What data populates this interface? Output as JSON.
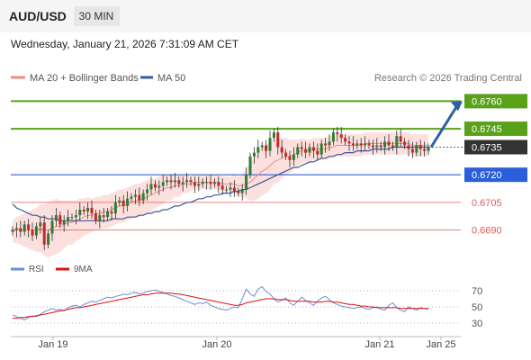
{
  "header": {
    "symbol": "AUD/USD",
    "timeframe": "30 MIN",
    "datetime": "Wednesday, January 21, 2026 7:31:09 AM CET",
    "copyright": "Research © 2026 Trading Central"
  },
  "colors": {
    "ma20": "#f28b82",
    "ma50": "#3a5a9a",
    "green": "#5aa11a",
    "blue": "#2b5fd9",
    "red": "#e05a5a",
    "candle_up": "#2e7d32",
    "candle_down": "#c62828",
    "band": "#f9d3d0",
    "rsi": "#6a8fd8",
    "rsi_ma": "#e01010",
    "arrow": "#2e5fa6"
  },
  "chart_data": [
    {
      "type": "candlestick",
      "legend": [
        {
          "label": "MA 20 + Bollinger Bands",
          "color": "#f28b82"
        },
        {
          "label": "MA 50",
          "color": "#3a5a9a"
        }
      ],
      "ylim": [
        0.6679,
        0.6769
      ],
      "x_ticks": [
        "Jan 19",
        "Jan 20",
        "Jan 21",
        "Jan 25"
      ],
      "levels": [
        {
          "value": 0.676,
          "label": "0.6760",
          "color": "#5aa11a",
          "style": "filled"
        },
        {
          "value": 0.6745,
          "label": "0.6745",
          "color": "#5aa11a",
          "style": "filled"
        },
        {
          "value": 0.6735,
          "label": "0.6735",
          "color": "#333333",
          "style": "current"
        },
        {
          "value": 0.672,
          "label": "0.6720",
          "color": "#2b5fd9",
          "style": "filled"
        },
        {
          "value": 0.6705,
          "label": "0.6705",
          "color": "#e05a5a",
          "style": "text"
        },
        {
          "value": 0.669,
          "label": "0.6690",
          "color": "#e05a5a",
          "style": "text"
        }
      ],
      "closes": [
        0.669,
        0.6691,
        0.6689,
        0.6693,
        0.669,
        0.6687,
        0.6692,
        0.6694,
        0.6682,
        0.6688,
        0.6695,
        0.6698,
        0.6693,
        0.6695,
        0.6697,
        0.6697,
        0.6698,
        0.6701,
        0.67,
        0.6702,
        0.6699,
        0.6695,
        0.6698,
        0.6697,
        0.67,
        0.6699,
        0.6705,
        0.6706,
        0.6703,
        0.6707,
        0.6708,
        0.6709,
        0.6706,
        0.671,
        0.6712,
        0.6715,
        0.6713,
        0.6714,
        0.6716,
        0.6717,
        0.6716,
        0.6717,
        0.6715,
        0.6716,
        0.6717,
        0.6716,
        0.6714,
        0.6715,
        0.6716,
        0.6716,
        0.6715,
        0.6716,
        0.6714,
        0.6712,
        0.6712,
        0.6713,
        0.6711,
        0.671,
        0.6712,
        0.672,
        0.673,
        0.6732,
        0.6735,
        0.6736,
        0.6733,
        0.674,
        0.6743,
        0.6735,
        0.6732,
        0.673,
        0.6728,
        0.6731,
        0.6735,
        0.6734,
        0.6732,
        0.6735,
        0.6733,
        0.6731,
        0.6737,
        0.6736,
        0.6738,
        0.6743,
        0.6742,
        0.674,
        0.6738,
        0.6737,
        0.6736,
        0.6737,
        0.6736,
        0.6737,
        0.6736,
        0.6735,
        0.6736,
        0.6735,
        0.6738,
        0.6736,
        0.6735,
        0.6741,
        0.6738,
        0.6736,
        0.6734,
        0.6732,
        0.6736,
        0.6734,
        0.6733,
        0.6735
      ],
      "ma20": [
        0.6689,
        0.669,
        0.669,
        0.669,
        0.669,
        0.669,
        0.669,
        0.6691,
        0.669,
        0.669,
        0.6691,
        0.6692,
        0.6692,
        0.6693,
        0.6694,
        0.6694,
        0.6695,
        0.6696,
        0.6697,
        0.6698,
        0.6698,
        0.6699,
        0.6699,
        0.67,
        0.67,
        0.6701,
        0.6702,
        0.6703,
        0.6703,
        0.6704,
        0.6705,
        0.6706,
        0.6706,
        0.6707,
        0.6708,
        0.6709,
        0.671,
        0.6711,
        0.6712,
        0.6713,
        0.6713,
        0.6714,
        0.6714,
        0.6715,
        0.6715,
        0.6715,
        0.6716,
        0.6716,
        0.6716,
        0.6716,
        0.6716,
        0.6716,
        0.6716,
        0.6715,
        0.6715,
        0.6715,
        0.6715,
        0.6714,
        0.6714,
        0.6715,
        0.6716,
        0.6718,
        0.672,
        0.6722,
        0.6723,
        0.6725,
        0.6727,
        0.6728,
        0.6729,
        0.673,
        0.673,
        0.6731,
        0.6732,
        0.6733,
        0.6733,
        0.6733,
        0.6734,
        0.6734,
        0.6734,
        0.6734,
        0.6735,
        0.6735,
        0.6736,
        0.6736,
        0.6736,
        0.6736,
        0.6736,
        0.6736,
        0.6736,
        0.6737,
        0.6737,
        0.6737,
        0.6737,
        0.6737,
        0.6737,
        0.6737,
        0.6737,
        0.6737,
        0.6737,
        0.6737,
        0.6737,
        0.6736,
        0.6736,
        0.6736,
        0.6736,
        0.6736
      ],
      "band_width": [
        0.0006,
        0.0007,
        0.0008,
        0.0009,
        0.001,
        0.0011,
        0.0012,
        0.0013,
        0.0014,
        0.0015,
        0.0015,
        0.0015,
        0.0014,
        0.0013,
        0.0012,
        0.0012,
        0.0011,
        0.0011,
        0.001,
        0.001,
        0.0009,
        0.0009,
        0.0009,
        0.0009,
        0.0009,
        0.0009,
        0.0009,
        0.0009,
        0.0009,
        0.0009,
        0.0009,
        0.0009,
        0.0009,
        0.0009,
        0.0009,
        0.0009,
        0.0008,
        0.0008,
        0.0008,
        0.0007,
        0.0007,
        0.0006,
        0.0006,
        0.0005,
        0.0005,
        0.0004,
        0.0004,
        0.0004,
        0.0004,
        0.0004,
        0.0004,
        0.0004,
        0.0004,
        0.0004,
        0.0004,
        0.0004,
        0.0005,
        0.0005,
        0.0006,
        0.0008,
        0.001,
        0.0012,
        0.0013,
        0.0013,
        0.0013,
        0.0013,
        0.0012,
        0.0012,
        0.0011,
        0.001,
        0.0009,
        0.0008,
        0.0007,
        0.0007,
        0.0006,
        0.0006,
        0.0006,
        0.0006,
        0.0006,
        0.0006,
        0.0006,
        0.0006,
        0.0006,
        0.0006,
        0.0006,
        0.0006,
        0.0006,
        0.0006,
        0.0006,
        0.0006,
        0.0006,
        0.0006,
        0.0006,
        0.0006,
        0.0006,
        0.0006,
        0.0006,
        0.0006,
        0.0006,
        0.0006,
        0.0006,
        0.0006,
        0.0006,
        0.0006,
        0.0006,
        0.0006
      ],
      "ma50": [
        0.6704,
        0.6702,
        0.6701,
        0.67,
        0.6699,
        0.6698,
        0.6698,
        0.6697,
        0.6697,
        0.6696,
        0.6696,
        0.6696,
        0.6695,
        0.6695,
        0.6695,
        0.6695,
        0.6695,
        0.6695,
        0.6695,
        0.6695,
        0.6695,
        0.6695,
        0.6695,
        0.6695,
        0.6695,
        0.6696,
        0.6696,
        0.6696,
        0.6696,
        0.6697,
        0.6697,
        0.6697,
        0.6698,
        0.6698,
        0.6699,
        0.6699,
        0.67,
        0.67,
        0.6701,
        0.6701,
        0.6702,
        0.6703,
        0.6703,
        0.6704,
        0.6705,
        0.6705,
        0.6706,
        0.6707,
        0.6707,
        0.6708,
        0.6708,
        0.6709,
        0.6709,
        0.671,
        0.671,
        0.671,
        0.6711,
        0.6711,
        0.6712,
        0.6712,
        0.6713,
        0.6714,
        0.6715,
        0.6716,
        0.6717,
        0.6718,
        0.6719,
        0.672,
        0.6721,
        0.6722,
        0.6723,
        0.6724,
        0.6724,
        0.6725,
        0.6726,
        0.6727,
        0.6727,
        0.6728,
        0.6729,
        0.6729,
        0.673,
        0.673,
        0.6731,
        0.6731,
        0.6732,
        0.6732,
        0.6732,
        0.6733,
        0.6733,
        0.6733,
        0.6733,
        0.6734,
        0.6734,
        0.6734,
        0.6734,
        0.6734,
        0.6735,
        0.6735,
        0.6735,
        0.6735,
        0.6735,
        0.6735,
        0.6735,
        0.6735,
        0.6735,
        0.6735
      ],
      "forecast_arrow": {
        "from": 0.6735,
        "to": 0.676
      }
    },
    {
      "type": "line",
      "legend": [
        {
          "label": "RSI",
          "color": "#6a8fd8"
        },
        {
          "label": "9MA",
          "color": "#e01010"
        }
      ],
      "ylim": [
        20,
        80
      ],
      "y_ticks": [
        "70",
        "50",
        "30"
      ],
      "series": [
        {
          "name": "RSI",
          "values": [
            40,
            38,
            36,
            34,
            37,
            39,
            38,
            41,
            44,
            46,
            48,
            46,
            47,
            45,
            49,
            51,
            52,
            50,
            53,
            55,
            57,
            56,
            58,
            60,
            62,
            61,
            63,
            64,
            66,
            65,
            67,
            68,
            66,
            67,
            69,
            70,
            71,
            69,
            68,
            66,
            64,
            63,
            61,
            59,
            57,
            55,
            53,
            55,
            54,
            56,
            52,
            50,
            48,
            47,
            46,
            48,
            50,
            49,
            60,
            72,
            66,
            63,
            72,
            75,
            69,
            66,
            60,
            56,
            58,
            61,
            55,
            52,
            57,
            62,
            58,
            55,
            52,
            57,
            61,
            63,
            59,
            55,
            53,
            51,
            50,
            49,
            48,
            49,
            50,
            48,
            47,
            49,
            50,
            47,
            46,
            52,
            55,
            49,
            46,
            44,
            50,
            48,
            46,
            49,
            48,
            47
          ]
        },
        {
          "name": "9MA",
          "values": [
            36,
            36,
            37,
            37,
            38,
            38,
            39,
            40,
            41,
            42,
            43,
            44,
            45,
            46,
            47,
            48,
            49,
            49,
            50,
            51,
            52,
            53,
            54,
            55,
            56,
            57,
            58,
            59,
            60,
            61,
            62,
            63,
            64,
            65,
            65,
            66,
            67,
            67,
            67,
            67,
            67,
            66,
            66,
            65,
            64,
            63,
            62,
            61,
            60,
            59,
            58,
            57,
            56,
            55,
            54,
            53,
            52,
            52,
            53,
            55,
            56,
            57,
            58,
            59,
            60,
            60,
            60,
            59,
            59,
            59,
            58,
            57,
            57,
            57,
            57,
            57,
            56,
            56,
            56,
            57,
            57,
            56,
            56,
            55,
            54,
            53,
            53,
            52,
            51,
            51,
            50,
            50,
            49,
            49,
            49,
            49,
            49,
            49,
            48,
            48,
            48,
            48,
            48,
            48,
            48,
            48
          ]
        }
      ]
    }
  ]
}
